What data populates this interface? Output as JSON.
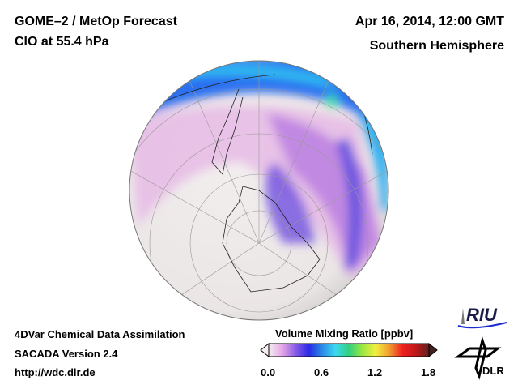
{
  "header": {
    "title": "GOME–2 / MetOp Forecast",
    "species": "ClO at 55.4 hPa",
    "datetime": "Apr 16, 2014, 12:00 GMT",
    "region": "Southern Hemisphere"
  },
  "footer": {
    "line1": "4DVar Chemical Data Assimilation",
    "line2": "SACADA Version 2.4",
    "url": "http://wdc.dlr.de"
  },
  "colorbar": {
    "label": "Volume Mixing Ratio [ppbv]",
    "ticks": [
      "0.0",
      "0.6",
      "1.2",
      "1.8"
    ],
    "colors": [
      "#f4eef0",
      "#e6a8e6",
      "#8a5ce6",
      "#2a2ae6",
      "#2a8ae6",
      "#3ad8f0",
      "#30d080",
      "#9ae640",
      "#f0f040",
      "#f0a030",
      "#f02020",
      "#c01818",
      "#602020"
    ]
  },
  "logos": {
    "riu": "RIU",
    "dlr": "DLR"
  }
}
